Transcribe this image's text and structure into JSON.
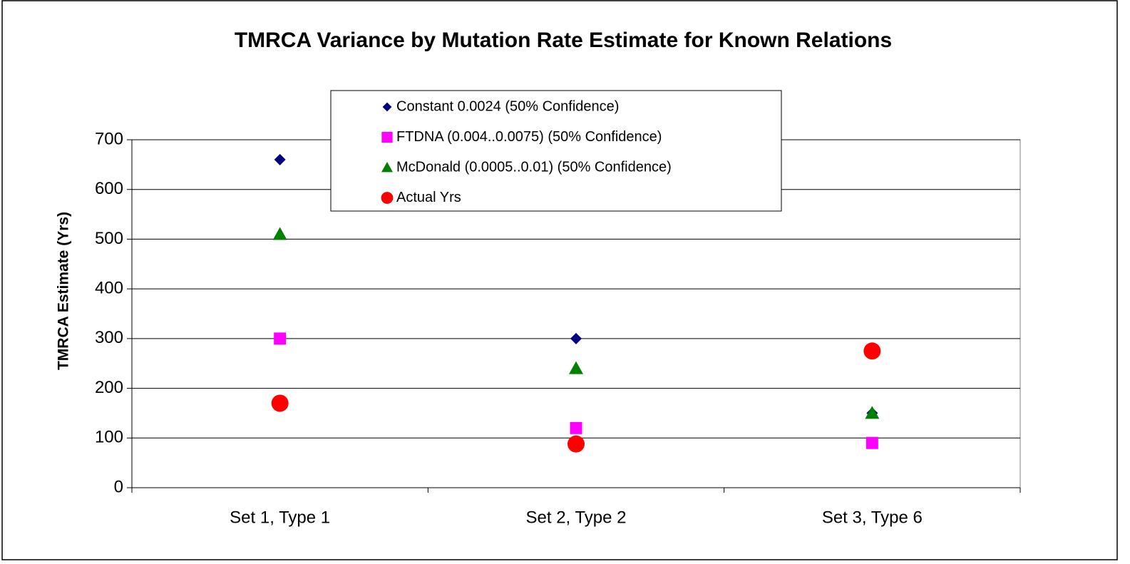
{
  "chart_data": {
    "type": "scatter",
    "title": "TMRCA Variance by Mutation Rate Estimate for Known Relations",
    "y_label": "TMRCA Estimate (Yrs)",
    "categories": [
      "Set 1, Type 1",
      "Set 2, Type 2",
      "Set 3, Type 6"
    ],
    "series": [
      {
        "name": "Constant 0.0024 (50% Confidence)",
        "color": "#000080",
        "marker": "diamond",
        "values": [
          660,
          300,
          150
        ]
      },
      {
        "name": "FTDNA (0.004..0.0075)  (50% Confidence)",
        "color": "#ff00ff",
        "marker": "square",
        "values": [
          300,
          120,
          90
        ]
      },
      {
        "name": "McDonald (0.0005..0.01)  (50% Confidence)",
        "color": "#008000",
        "marker": "triangle",
        "values": [
          510,
          240,
          150
        ]
      },
      {
        "name": "Actual Yrs",
        "color": "#ff0000",
        "marker": "circle",
        "values": [
          170,
          88,
          275
        ]
      }
    ],
    "ylim": [
      0,
      700
    ],
    "yticks": [
      0,
      100,
      200,
      300,
      400,
      500,
      600,
      700
    ],
    "grid": true
  }
}
